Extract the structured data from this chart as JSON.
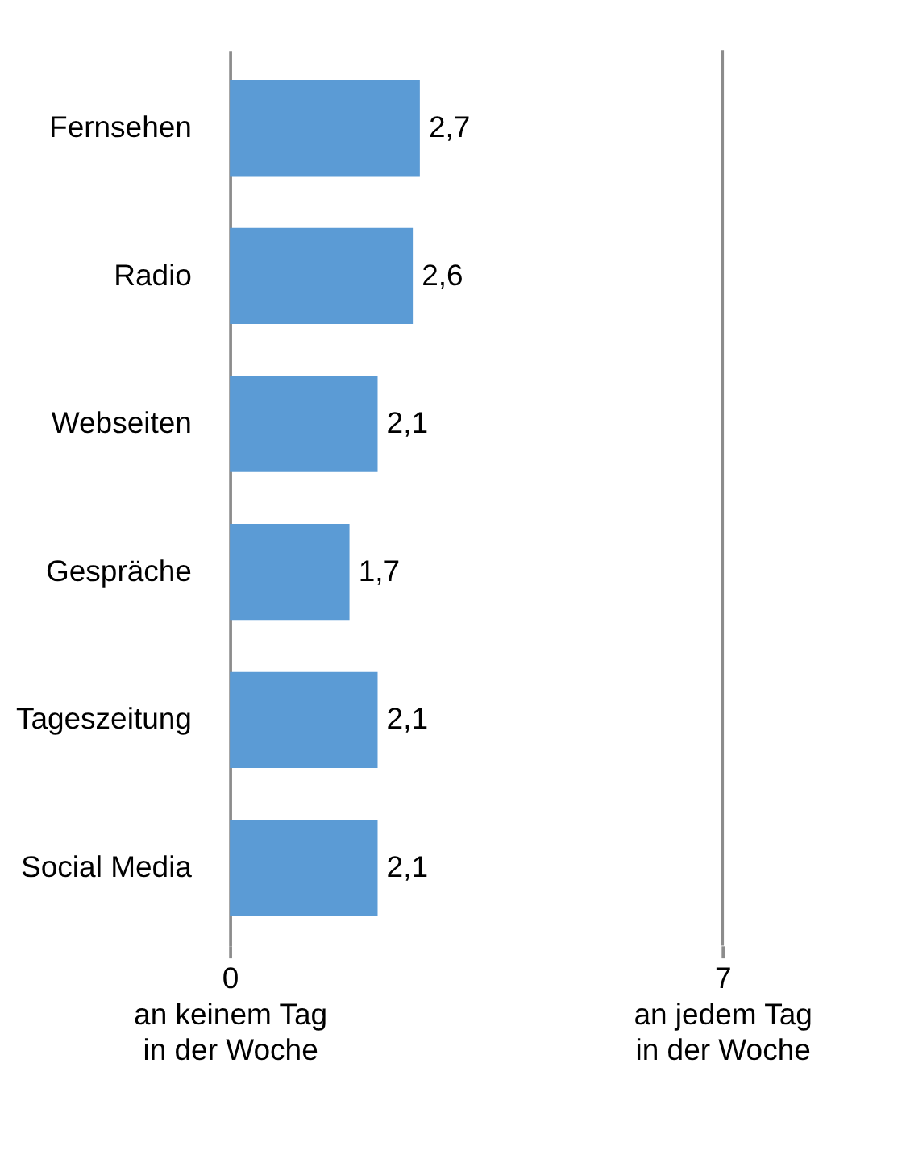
{
  "chart_data": {
    "type": "bar",
    "orientation": "horizontal",
    "categories": [
      "Fernsehen",
      "Radio",
      "Webseiten",
      "Gespräche",
      "Tageszeitung",
      "Social Media"
    ],
    "values": [
      2.7,
      2.6,
      2.1,
      1.7,
      2.1,
      2.1
    ],
    "value_labels": [
      "2,7",
      "2,6",
      "2,1",
      "1,7",
      "2,1",
      "2,1"
    ],
    "color": "#5b9bd5",
    "xlim": [
      0,
      7
    ],
    "xticks": [
      {
        "value": 0,
        "label": "0\nan keinem Tag\nin der Woche"
      },
      {
        "value": 7,
        "label": "7\nan jedem Tag\nin der Woche"
      }
    ],
    "grid": false
  }
}
